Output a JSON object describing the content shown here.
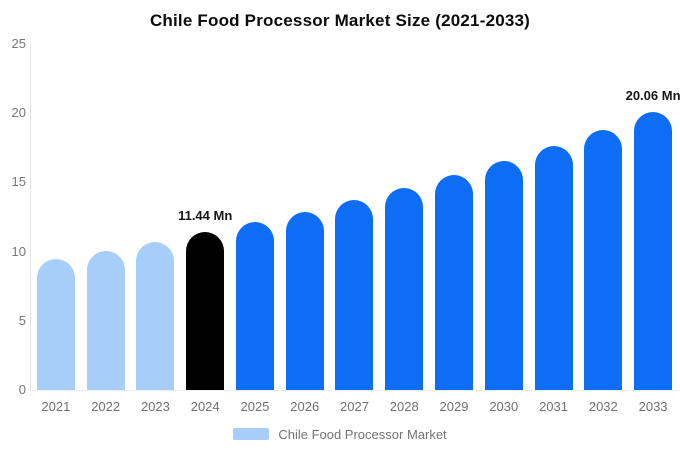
{
  "title": "Chile Food Processor Market Size (2021-2033)",
  "legend": {
    "label": "Chile Food Processor Market",
    "swatch_color": "#a7cdf9"
  },
  "colors": {
    "historical_bar": "#a7cdf9",
    "base_year_bar": "#000000",
    "forecast_bar": "#0d6ef5",
    "axis_label": "#77787b",
    "legend_text": "#757575",
    "title_text": "#0c0c0c"
  },
  "chart_data": {
    "type": "bar",
    "title": "Chile Food Processor Market Size (2021-2033)",
    "categories": [
      "2021",
      "2022",
      "2023",
      "2024",
      "2025",
      "2026",
      "2027",
      "2028",
      "2029",
      "2030",
      "2031",
      "2032",
      "2033"
    ],
    "values": [
      9.5,
      10.05,
      10.72,
      11.44,
      12.15,
      12.88,
      13.75,
      14.57,
      15.5,
      16.55,
      17.6,
      18.76,
      20.06
    ],
    "unit": "Mn",
    "series_name": "Chile Food Processor Market",
    "xlabel": "",
    "ylabel": "",
    "ylim": [
      0,
      25
    ],
    "yticks": [
      0,
      5,
      10,
      15,
      20,
      25
    ],
    "grid": false,
    "legend_position": "bottom",
    "bar_colors": [
      "#a7cdf9",
      "#a7cdf9",
      "#a7cdf9",
      "#000000",
      "#0d6ef5",
      "#0d6ef5",
      "#0d6ef5",
      "#0d6ef5",
      "#0d6ef5",
      "#0d6ef5",
      "#0d6ef5",
      "#0d6ef5",
      "#0d6ef5"
    ],
    "data_labels": {
      "3": "11.44 Mn",
      "12": "20.06 Mn"
    }
  }
}
